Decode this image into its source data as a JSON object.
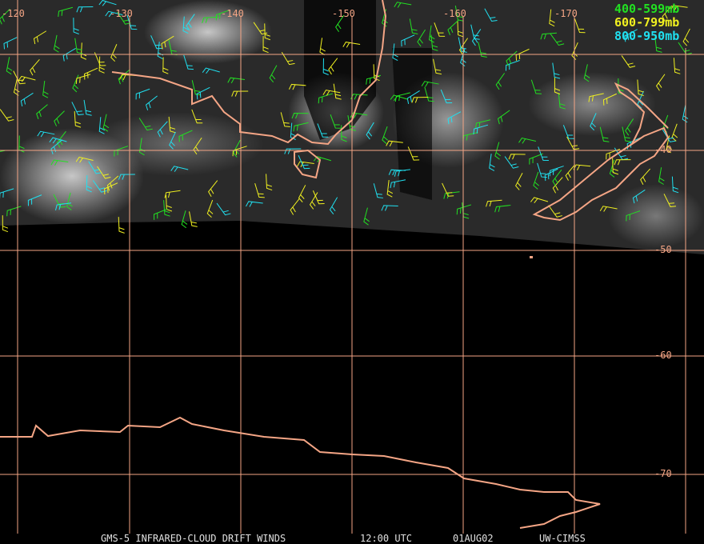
{
  "map": {
    "longitude_labels": [
      "-120",
      "-130",
      "-140",
      "-150",
      "-160",
      "-170"
    ],
    "latitude_labels": [
      "-40",
      "-50",
      "-60",
      "-70"
    ],
    "legend": [
      {
        "text": "400-599mb",
        "color": "#22e022"
      },
      {
        "text": "600-799mb",
        "color": "#f0f020"
      },
      {
        "text": "800-950mb",
        "color": "#20e0f0"
      }
    ],
    "footer": [
      "GMS-5 INFRARED-CLOUD DRIFT WINDS",
      "12:00 UTC",
      "01AUG02",
      "UW-CIMSS"
    ]
  }
}
